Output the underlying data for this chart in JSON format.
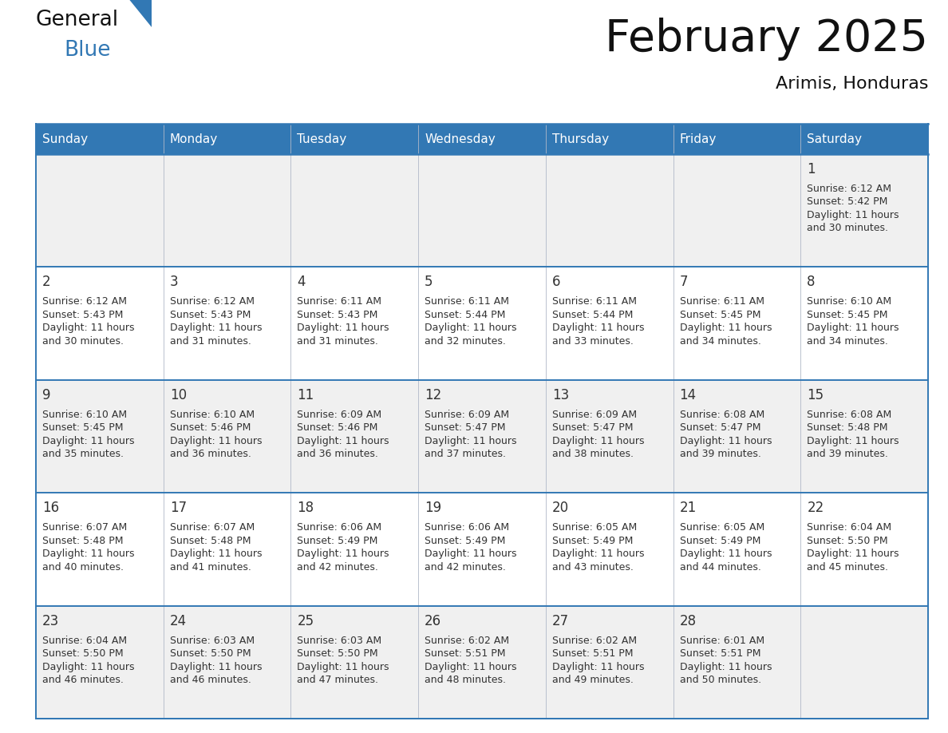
{
  "title": "February 2025",
  "subtitle": "Arimis, Honduras",
  "header_color": "#3278b4",
  "header_text_color": "#ffffff",
  "day_names": [
    "Sunday",
    "Monday",
    "Tuesday",
    "Wednesday",
    "Thursday",
    "Friday",
    "Saturday"
  ],
  "background_color": "#ffffff",
  "cell_bg_even": "#f0f0f0",
  "cell_bg_odd": "#ffffff",
  "border_color": "#3278b4",
  "text_color": "#333333",
  "date_color": "#333333",
  "logo_general_color": "#111111",
  "logo_blue_color": "#3278b4",
  "logo_triangle_color": "#3278b4",
  "days": [
    {
      "day": 1,
      "col": 6,
      "row": 0,
      "sunrise": "6:12 AM",
      "sunset": "5:42 PM",
      "daylight_hours": 11,
      "daylight_minutes": 30
    },
    {
      "day": 2,
      "col": 0,
      "row": 1,
      "sunrise": "6:12 AM",
      "sunset": "5:43 PM",
      "daylight_hours": 11,
      "daylight_minutes": 30
    },
    {
      "day": 3,
      "col": 1,
      "row": 1,
      "sunrise": "6:12 AM",
      "sunset": "5:43 PM",
      "daylight_hours": 11,
      "daylight_minutes": 31
    },
    {
      "day": 4,
      "col": 2,
      "row": 1,
      "sunrise": "6:11 AM",
      "sunset": "5:43 PM",
      "daylight_hours": 11,
      "daylight_minutes": 31
    },
    {
      "day": 5,
      "col": 3,
      "row": 1,
      "sunrise": "6:11 AM",
      "sunset": "5:44 PM",
      "daylight_hours": 11,
      "daylight_minutes": 32
    },
    {
      "day": 6,
      "col": 4,
      "row": 1,
      "sunrise": "6:11 AM",
      "sunset": "5:44 PM",
      "daylight_hours": 11,
      "daylight_minutes": 33
    },
    {
      "day": 7,
      "col": 5,
      "row": 1,
      "sunrise": "6:11 AM",
      "sunset": "5:45 PM",
      "daylight_hours": 11,
      "daylight_minutes": 34
    },
    {
      "day": 8,
      "col": 6,
      "row": 1,
      "sunrise": "6:10 AM",
      "sunset": "5:45 PM",
      "daylight_hours": 11,
      "daylight_minutes": 34
    },
    {
      "day": 9,
      "col": 0,
      "row": 2,
      "sunrise": "6:10 AM",
      "sunset": "5:45 PM",
      "daylight_hours": 11,
      "daylight_minutes": 35
    },
    {
      "day": 10,
      "col": 1,
      "row": 2,
      "sunrise": "6:10 AM",
      "sunset": "5:46 PM",
      "daylight_hours": 11,
      "daylight_minutes": 36
    },
    {
      "day": 11,
      "col": 2,
      "row": 2,
      "sunrise": "6:09 AM",
      "sunset": "5:46 PM",
      "daylight_hours": 11,
      "daylight_minutes": 36
    },
    {
      "day": 12,
      "col": 3,
      "row": 2,
      "sunrise": "6:09 AM",
      "sunset": "5:47 PM",
      "daylight_hours": 11,
      "daylight_minutes": 37
    },
    {
      "day": 13,
      "col": 4,
      "row": 2,
      "sunrise": "6:09 AM",
      "sunset": "5:47 PM",
      "daylight_hours": 11,
      "daylight_minutes": 38
    },
    {
      "day": 14,
      "col": 5,
      "row": 2,
      "sunrise": "6:08 AM",
      "sunset": "5:47 PM",
      "daylight_hours": 11,
      "daylight_minutes": 39
    },
    {
      "day": 15,
      "col": 6,
      "row": 2,
      "sunrise": "6:08 AM",
      "sunset": "5:48 PM",
      "daylight_hours": 11,
      "daylight_minutes": 39
    },
    {
      "day": 16,
      "col": 0,
      "row": 3,
      "sunrise": "6:07 AM",
      "sunset": "5:48 PM",
      "daylight_hours": 11,
      "daylight_minutes": 40
    },
    {
      "day": 17,
      "col": 1,
      "row": 3,
      "sunrise": "6:07 AM",
      "sunset": "5:48 PM",
      "daylight_hours": 11,
      "daylight_minutes": 41
    },
    {
      "day": 18,
      "col": 2,
      "row": 3,
      "sunrise": "6:06 AM",
      "sunset": "5:49 PM",
      "daylight_hours": 11,
      "daylight_minutes": 42
    },
    {
      "day": 19,
      "col": 3,
      "row": 3,
      "sunrise": "6:06 AM",
      "sunset": "5:49 PM",
      "daylight_hours": 11,
      "daylight_minutes": 42
    },
    {
      "day": 20,
      "col": 4,
      "row": 3,
      "sunrise": "6:05 AM",
      "sunset": "5:49 PM",
      "daylight_hours": 11,
      "daylight_minutes": 43
    },
    {
      "day": 21,
      "col": 5,
      "row": 3,
      "sunrise": "6:05 AM",
      "sunset": "5:49 PM",
      "daylight_hours": 11,
      "daylight_minutes": 44
    },
    {
      "day": 22,
      "col": 6,
      "row": 3,
      "sunrise": "6:04 AM",
      "sunset": "5:50 PM",
      "daylight_hours": 11,
      "daylight_minutes": 45
    },
    {
      "day": 23,
      "col": 0,
      "row": 4,
      "sunrise": "6:04 AM",
      "sunset": "5:50 PM",
      "daylight_hours": 11,
      "daylight_minutes": 46
    },
    {
      "day": 24,
      "col": 1,
      "row": 4,
      "sunrise": "6:03 AM",
      "sunset": "5:50 PM",
      "daylight_hours": 11,
      "daylight_minutes": 46
    },
    {
      "day": 25,
      "col": 2,
      "row": 4,
      "sunrise": "6:03 AM",
      "sunset": "5:50 PM",
      "daylight_hours": 11,
      "daylight_minutes": 47
    },
    {
      "day": 26,
      "col": 3,
      "row": 4,
      "sunrise": "6:02 AM",
      "sunset": "5:51 PM",
      "daylight_hours": 11,
      "daylight_minutes": 48
    },
    {
      "day": 27,
      "col": 4,
      "row": 4,
      "sunrise": "6:02 AM",
      "sunset": "5:51 PM",
      "daylight_hours": 11,
      "daylight_minutes": 49
    },
    {
      "day": 28,
      "col": 5,
      "row": 4,
      "sunrise": "6:01 AM",
      "sunset": "5:51 PM",
      "daylight_hours": 11,
      "daylight_minutes": 50
    }
  ],
  "num_rows": 5,
  "num_cols": 7,
  "fig_width": 11.88,
  "fig_height": 9.18,
  "dpi": 100
}
